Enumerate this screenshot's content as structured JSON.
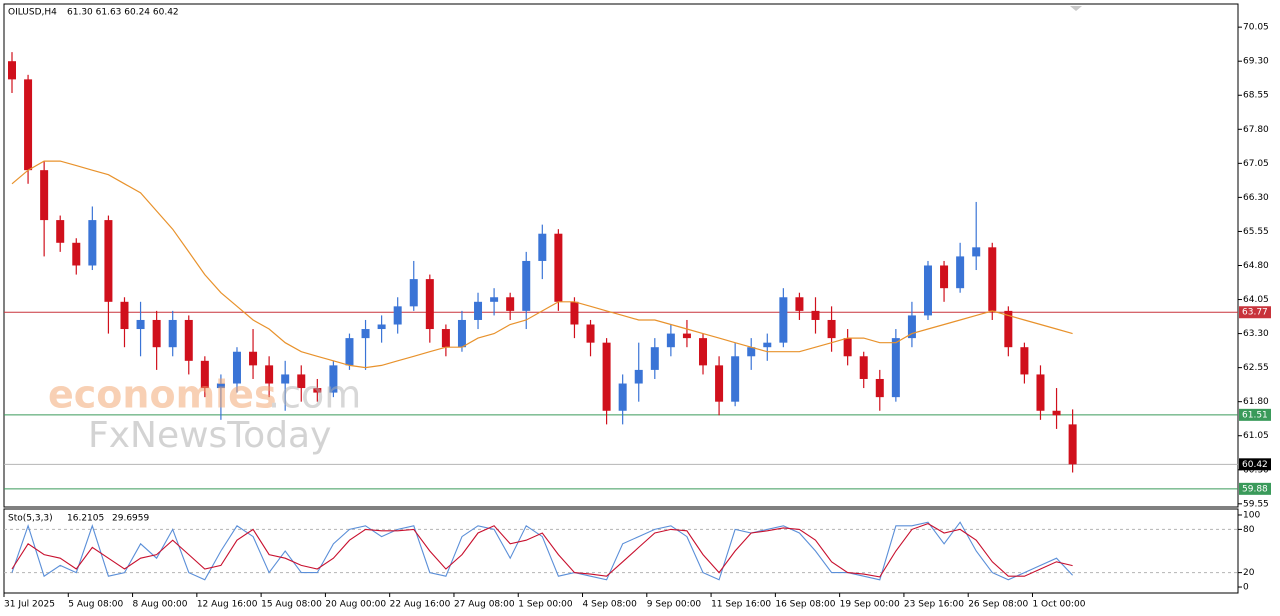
{
  "chart_data": [
    {
      "type": "candlestick",
      "symbol": "OILUSD,H4",
      "ohlc_text": "61.30 61.63 60.24 60.42",
      "categories": [
        "31 Jul 2025",
        null,
        null,
        null,
        "5 Aug 08:00",
        null,
        null,
        null,
        "8 Aug 00:00",
        null,
        null,
        null,
        "12 Aug 16:00",
        null,
        null,
        null,
        "15 Aug 08:00",
        null,
        null,
        null,
        "20 Aug 00:00",
        null,
        null,
        null,
        "22 Aug 16:00",
        null,
        null,
        null,
        "27 Aug 08:00",
        null,
        null,
        null,
        "1 Sep 00:00",
        null,
        null,
        null,
        "4 Sep 08:00",
        null,
        null,
        null,
        "9 Sep 00:00",
        null,
        null,
        null,
        "11 Sep 16:00",
        null,
        null,
        null,
        "16 Sep 08:00",
        null,
        null,
        null,
        "19 Sep 00:00",
        null,
        null,
        null,
        "23 Sep 16:00",
        null,
        null,
        null,
        "26 Sep 08:00",
        null,
        null,
        null,
        "1 Oct 00:00",
        null,
        null
      ],
      "open": [
        69.3,
        68.9,
        66.9,
        65.8,
        65.3,
        64.8,
        65.8,
        64.0,
        63.4,
        63.6,
        63.0,
        63.6,
        62.7,
        62.1,
        62.2,
        62.9,
        62.6,
        62.2,
        62.4,
        62.1,
        62.0,
        62.6,
        63.2,
        63.4,
        63.5,
        63.9,
        64.5,
        63.4,
        63.0,
        63.6,
        64.0,
        64.1,
        63.8,
        64.9,
        65.5,
        64.0,
        63.5,
        63.1,
        61.6,
        62.2,
        62.5,
        63.0,
        63.3,
        63.2,
        62.6,
        61.8,
        62.8,
        63.0,
        63.1,
        64.1,
        63.8,
        63.6,
        63.2,
        62.8,
        62.3,
        61.9,
        63.2,
        63.7,
        64.8,
        64.3,
        65.0,
        65.2,
        63.8,
        63.0,
        62.4,
        61.6,
        61.3
      ],
      "high": [
        69.5,
        69.0,
        67.1,
        65.9,
        65.4,
        66.1,
        65.9,
        64.1,
        64.0,
        63.8,
        63.8,
        63.7,
        62.8,
        62.4,
        63.0,
        63.4,
        62.8,
        62.7,
        62.6,
        62.3,
        62.7,
        63.3,
        63.6,
        63.7,
        64.1,
        64.9,
        64.6,
        63.5,
        63.8,
        64.2,
        64.3,
        64.2,
        65.1,
        65.7,
        65.6,
        64.1,
        63.6,
        63.2,
        62.4,
        63.1,
        63.2,
        63.5,
        63.6,
        63.3,
        62.8,
        63.1,
        63.2,
        63.3,
        64.3,
        64.2,
        64.1,
        63.9,
        63.4,
        62.9,
        62.5,
        63.4,
        64.0,
        64.9,
        64.9,
        65.3,
        66.2,
        65.3,
        63.9,
        63.1,
        62.6,
        62.1,
        61.63
      ],
      "low": [
        68.6,
        66.6,
        65.0,
        65.1,
        64.6,
        64.7,
        63.3,
        63.0,
        62.8,
        62.5,
        62.8,
        62.4,
        61.9,
        61.4,
        62.0,
        62.3,
        61.9,
        61.6,
        61.8,
        61.8,
        61.9,
        62.5,
        62.5,
        63.1,
        63.3,
        63.8,
        63.1,
        62.8,
        62.9,
        63.4,
        63.7,
        63.6,
        63.4,
        64.5,
        63.8,
        63.2,
        62.8,
        61.3,
        61.3,
        61.8,
        62.3,
        62.8,
        63.0,
        62.4,
        61.5,
        61.7,
        62.5,
        62.7,
        63.0,
        63.6,
        63.3,
        62.9,
        62.6,
        62.1,
        61.6,
        61.8,
        63.0,
        63.6,
        64.0,
        64.2,
        64.7,
        63.6,
        62.8,
        62.2,
        61.4,
        61.2,
        60.24
      ],
      "close": [
        68.9,
        66.9,
        65.8,
        65.3,
        64.8,
        65.8,
        64.0,
        63.4,
        63.6,
        63.0,
        63.6,
        62.7,
        62.1,
        62.2,
        62.9,
        62.6,
        62.2,
        62.4,
        62.1,
        62.0,
        62.6,
        63.2,
        63.4,
        63.5,
        63.9,
        64.5,
        63.4,
        63.0,
        63.6,
        64.0,
        64.1,
        63.8,
        64.9,
        65.5,
        64.0,
        63.5,
        63.1,
        61.6,
        62.2,
        62.5,
        63.0,
        63.3,
        63.2,
        62.6,
        61.8,
        62.8,
        63.0,
        63.1,
        64.1,
        63.8,
        63.6,
        63.2,
        62.8,
        62.3,
        61.9,
        63.2,
        63.7,
        64.8,
        64.3,
        65.0,
        65.2,
        63.8,
        63.0,
        62.4,
        61.6,
        61.5,
        60.42
      ],
      "up_color": "#3a74d6",
      "down_color": "#d0101c",
      "ma": {
        "color": "#e8922c",
        "values": [
          66.6,
          66.9,
          67.1,
          67.1,
          67.0,
          66.9,
          66.8,
          66.6,
          66.4,
          66.0,
          65.6,
          65.1,
          64.6,
          64.2,
          63.9,
          63.6,
          63.4,
          63.1,
          62.9,
          62.8,
          62.7,
          62.6,
          62.55,
          62.6,
          62.7,
          62.8,
          62.9,
          63.0,
          63.0,
          63.2,
          63.3,
          63.5,
          63.6,
          63.8,
          64.0,
          64.0,
          63.9,
          63.8,
          63.7,
          63.6,
          63.6,
          63.5,
          63.4,
          63.3,
          63.2,
          63.1,
          63.0,
          62.9,
          62.9,
          62.9,
          63.0,
          63.1,
          63.2,
          63.2,
          63.1,
          63.1,
          63.3,
          63.4,
          63.5,
          63.6,
          63.7,
          63.8,
          63.7,
          63.6,
          63.5,
          63.4,
          63.3
        ]
      },
      "ylim": [
        59.48,
        70.56
      ],
      "yticks": [
        70.05,
        {
          "value": 69.3,
          "label": "69.30"
        },
        68.55,
        {
          "value": 67.8,
          "label": "67.80"
        },
        67.05,
        {
          "value": 66.3,
          "label": "66.30"
        },
        65.55,
        {
          "value": 64.8,
          "label": "64.80"
        },
        64.05,
        {
          "value": 63.3,
          "label": "63.30"
        },
        62.55,
        {
          "value": 61.8,
          "label": "61.80"
        },
        61.05,
        {
          "value": 60.3,
          "label": "60.30"
        },
        59.55
      ],
      "hlines": [
        {
          "value": 63.77,
          "color": "#c8333b"
        },
        {
          "value": 61.51,
          "color": "#3a9a5a"
        },
        {
          "value": 60.42,
          "color": "#b4b4b4"
        },
        {
          "value": 59.88,
          "color": "#3a9a5a"
        }
      ],
      "current_label_color": "#000000",
      "watermark": {
        "brand": "economies",
        "suffix": ".com",
        "sub": "FxNewsToday"
      }
    },
    {
      "type": "line",
      "name": "Sto(5,3,3)",
      "series": [
        {
          "color": "#5b8fd8",
          "values": [
            20,
            85,
            15,
            30,
            20,
            85,
            15,
            20,
            60,
            40,
            80,
            20,
            10,
            50,
            85,
            70,
            20,
            50,
            20,
            20,
            60,
            80,
            85,
            70,
            80,
            85,
            20,
            15,
            70,
            85,
            80,
            40,
            85,
            70,
            15,
            20,
            15,
            10,
            60,
            70,
            80,
            85,
            70,
            20,
            10,
            80,
            75,
            80,
            85,
            75,
            50,
            20,
            20,
            15,
            10,
            85,
            85,
            90,
            60,
            90,
            50,
            20,
            10,
            20,
            30,
            40,
            16.2105
          ]
        },
        {
          "color": "#c8102e",
          "values": [
            25,
            60,
            45,
            40,
            25,
            55,
            40,
            25,
            40,
            45,
            65,
            45,
            25,
            30,
            65,
            80,
            45,
            40,
            30,
            25,
            40,
            65,
            80,
            78,
            78,
            80,
            50,
            25,
            45,
            75,
            85,
            60,
            65,
            75,
            45,
            20,
            18,
            15,
            35,
            55,
            75,
            80,
            78,
            45,
            20,
            50,
            75,
            78,
            82,
            80,
            65,
            35,
            20,
            18,
            14,
            50,
            80,
            88,
            75,
            80,
            65,
            35,
            15,
            15,
            25,
            35,
            29.6959
          ]
        }
      ],
      "ylim": [
        -8.3,
        108.3
      ],
      "yticks": [
        0,
        20,
        80,
        100
      ],
      "levels": [
        20,
        80
      ]
    }
  ]
}
